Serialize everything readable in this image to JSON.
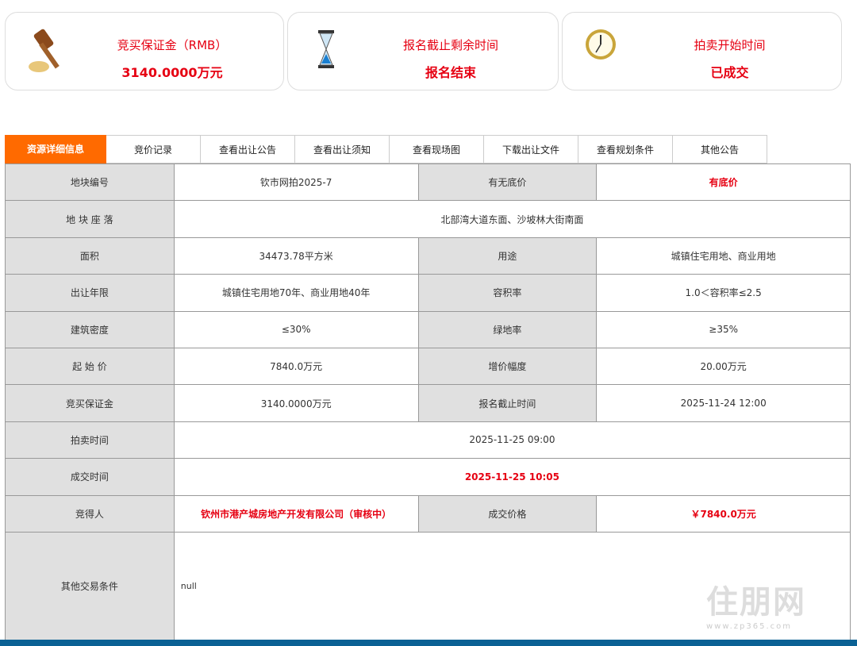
{
  "cards": [
    {
      "title": "竞买保证金（RMB）",
      "value": "3140.0000万元",
      "icon": "gavel-icon"
    },
    {
      "title": "报名截止剩余时间",
      "value": "报名结束",
      "icon": "hourglass-icon"
    },
    {
      "title": "拍卖开始时间",
      "value": "已成交",
      "icon": "clock-icon"
    }
  ],
  "tabs": [
    "资源详细信息",
    "竞价记录",
    "查看出让公告",
    "查看出让须知",
    "查看现场图",
    "下载出让文件",
    "查看规划条件",
    "其他公告"
  ],
  "rows": {
    "r1": [
      "地块编号",
      "钦市网拍2025-7",
      "有无底价",
      "有底价"
    ],
    "r2": [
      "地 块 座 落",
      "北部湾大道东面、沙坡林大街南面"
    ],
    "r3": [
      "面积",
      "34473.78平方米",
      "用途",
      "城镇住宅用地、商业用地"
    ],
    "r4": [
      "出让年限",
      "城镇住宅用地70年、商业用地40年",
      "容积率",
      "1.0＜容积率≤2.5"
    ],
    "r5": [
      "建筑密度",
      "≤30%",
      "绿地率",
      "≥35%"
    ],
    "r6": [
      "起 始 价",
      "7840.0万元",
      "增价幅度",
      "20.00万元"
    ],
    "r7": [
      "竞买保证金",
      "3140.0000万元",
      "报名截止时间",
      "2025-11-24 12:00"
    ],
    "r8": [
      "拍卖时间",
      "2025-11-25 09:00"
    ],
    "r9": [
      "成交时间",
      "2025-11-25 10:05"
    ],
    "r10": [
      "竞得人",
      "钦州市港产城房地产开发有限公司（审核中）",
      "成交价格",
      "￥7840.0万元"
    ],
    "r11": [
      "其他交易条件",
      "null"
    ]
  },
  "watermark": {
    "logo": "住朋网",
    "url": "www.zp365.com"
  },
  "colors": {
    "accent": "#ff6a00",
    "highlight": "#e60012",
    "footer": "#0b6194"
  }
}
